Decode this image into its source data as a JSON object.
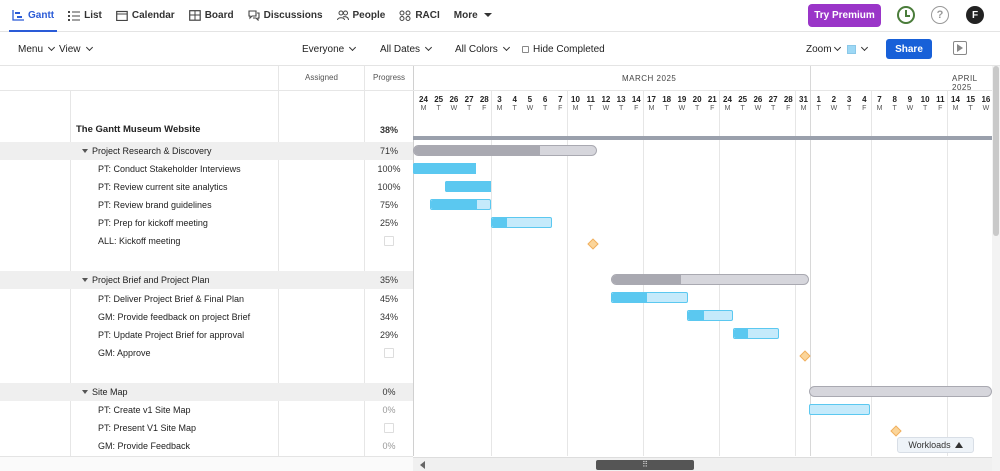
{
  "nav": {
    "tabs": [
      {
        "label": "Gantt",
        "icon": "gantt-icon",
        "active": true
      },
      {
        "label": "List",
        "icon": "list-icon"
      },
      {
        "label": "Calendar",
        "icon": "calendar-icon"
      },
      {
        "label": "Board",
        "icon": "board-icon"
      },
      {
        "label": "Discussions",
        "icon": "discussions-icon"
      },
      {
        "label": "People",
        "icon": "people-icon"
      },
      {
        "label": "RACI",
        "icon": "raci-icon"
      },
      {
        "label": "More",
        "icon": "chevron-down-icon"
      }
    ],
    "premium_label": "Try Premium",
    "help_label": "?",
    "avatar_label": "F",
    "accent": "#2a5bd7",
    "premium_color": "#9a35c8"
  },
  "toolbar": {
    "menu": "Menu",
    "view": "View",
    "everyone": "Everyone",
    "all_dates": "All Dates",
    "all_colors": "All Colors",
    "hide_completed": "Hide Completed",
    "zoom": "Zoom",
    "share": "Share"
  },
  "columns": {
    "assigned": "Assigned",
    "progress": "Progress"
  },
  "project": {
    "title": "The Gantt Museum Website",
    "progress": "38%"
  },
  "rows": [
    {
      "name": "Project Research & Discovery",
      "progress": "71%",
      "group": true
    },
    {
      "name": "PT: Conduct Stakeholder Interviews",
      "progress": "100%"
    },
    {
      "name": "PT: Review current site analytics",
      "progress": "100%"
    },
    {
      "name": "PT: Review brand guidelines",
      "progress": "75%"
    },
    {
      "name": "PT: Prep for kickoff meeting",
      "progress": "25%"
    },
    {
      "name": "ALL: Kickoff meeting",
      "progress": "",
      "milestone": true
    },
    {
      "name": "Project Brief and Project Plan",
      "progress": "35%",
      "group": true
    },
    {
      "name": "PT: Deliver Project Brief & Final Plan",
      "progress": "45%"
    },
    {
      "name": "GM: Provide feedback on project Brief",
      "progress": "34%"
    },
    {
      "name": "PT: Update Project Brief for approval",
      "progress": "29%"
    },
    {
      "name": "GM: Approve",
      "progress": "",
      "milestone": true
    },
    {
      "name": "Site Map",
      "progress": "0%",
      "group": true
    },
    {
      "name": "PT: Create v1 Site Map",
      "progress": "0%"
    },
    {
      "name": "PT: Present V1 Site Map",
      "progress": "",
      "milestone": true
    },
    {
      "name": "GM: Provide Feedback",
      "progress": "0%"
    }
  ],
  "timeline": {
    "months": [
      "MARCH 2025",
      "APRIL 2025"
    ],
    "days": [
      "24",
      "25",
      "26",
      "27",
      "28",
      "3",
      "4",
      "5",
      "6",
      "7",
      "10",
      "11",
      "12",
      "13",
      "14",
      "17",
      "18",
      "19",
      "20",
      "21",
      "24",
      "25",
      "26",
      "27",
      "28",
      "31",
      "1",
      "2",
      "3",
      "4",
      "7",
      "8",
      "9",
      "10",
      "11",
      "14",
      "15",
      "16"
    ],
    "weekdays": [
      "M",
      "T",
      "W",
      "T",
      "F",
      "M",
      "T",
      "W",
      "T",
      "F",
      "M",
      "T",
      "W",
      "T",
      "F",
      "M",
      "T",
      "W",
      "T",
      "F",
      "M",
      "T",
      "W",
      "T",
      "F",
      "M",
      "T",
      "W",
      "T",
      "F",
      "M",
      "T",
      "W",
      "T",
      "F",
      "M",
      "T",
      "W"
    ]
  },
  "colors": {
    "task_fill": "#5bc8f0",
    "task_light": "#c5eafb",
    "group_fill": "#a9a9b1",
    "group_light": "#d6d6dc",
    "milestone": "#fbd59a"
  },
  "footer": {
    "workloads": "Workloads",
    "handle": "⠿"
  }
}
